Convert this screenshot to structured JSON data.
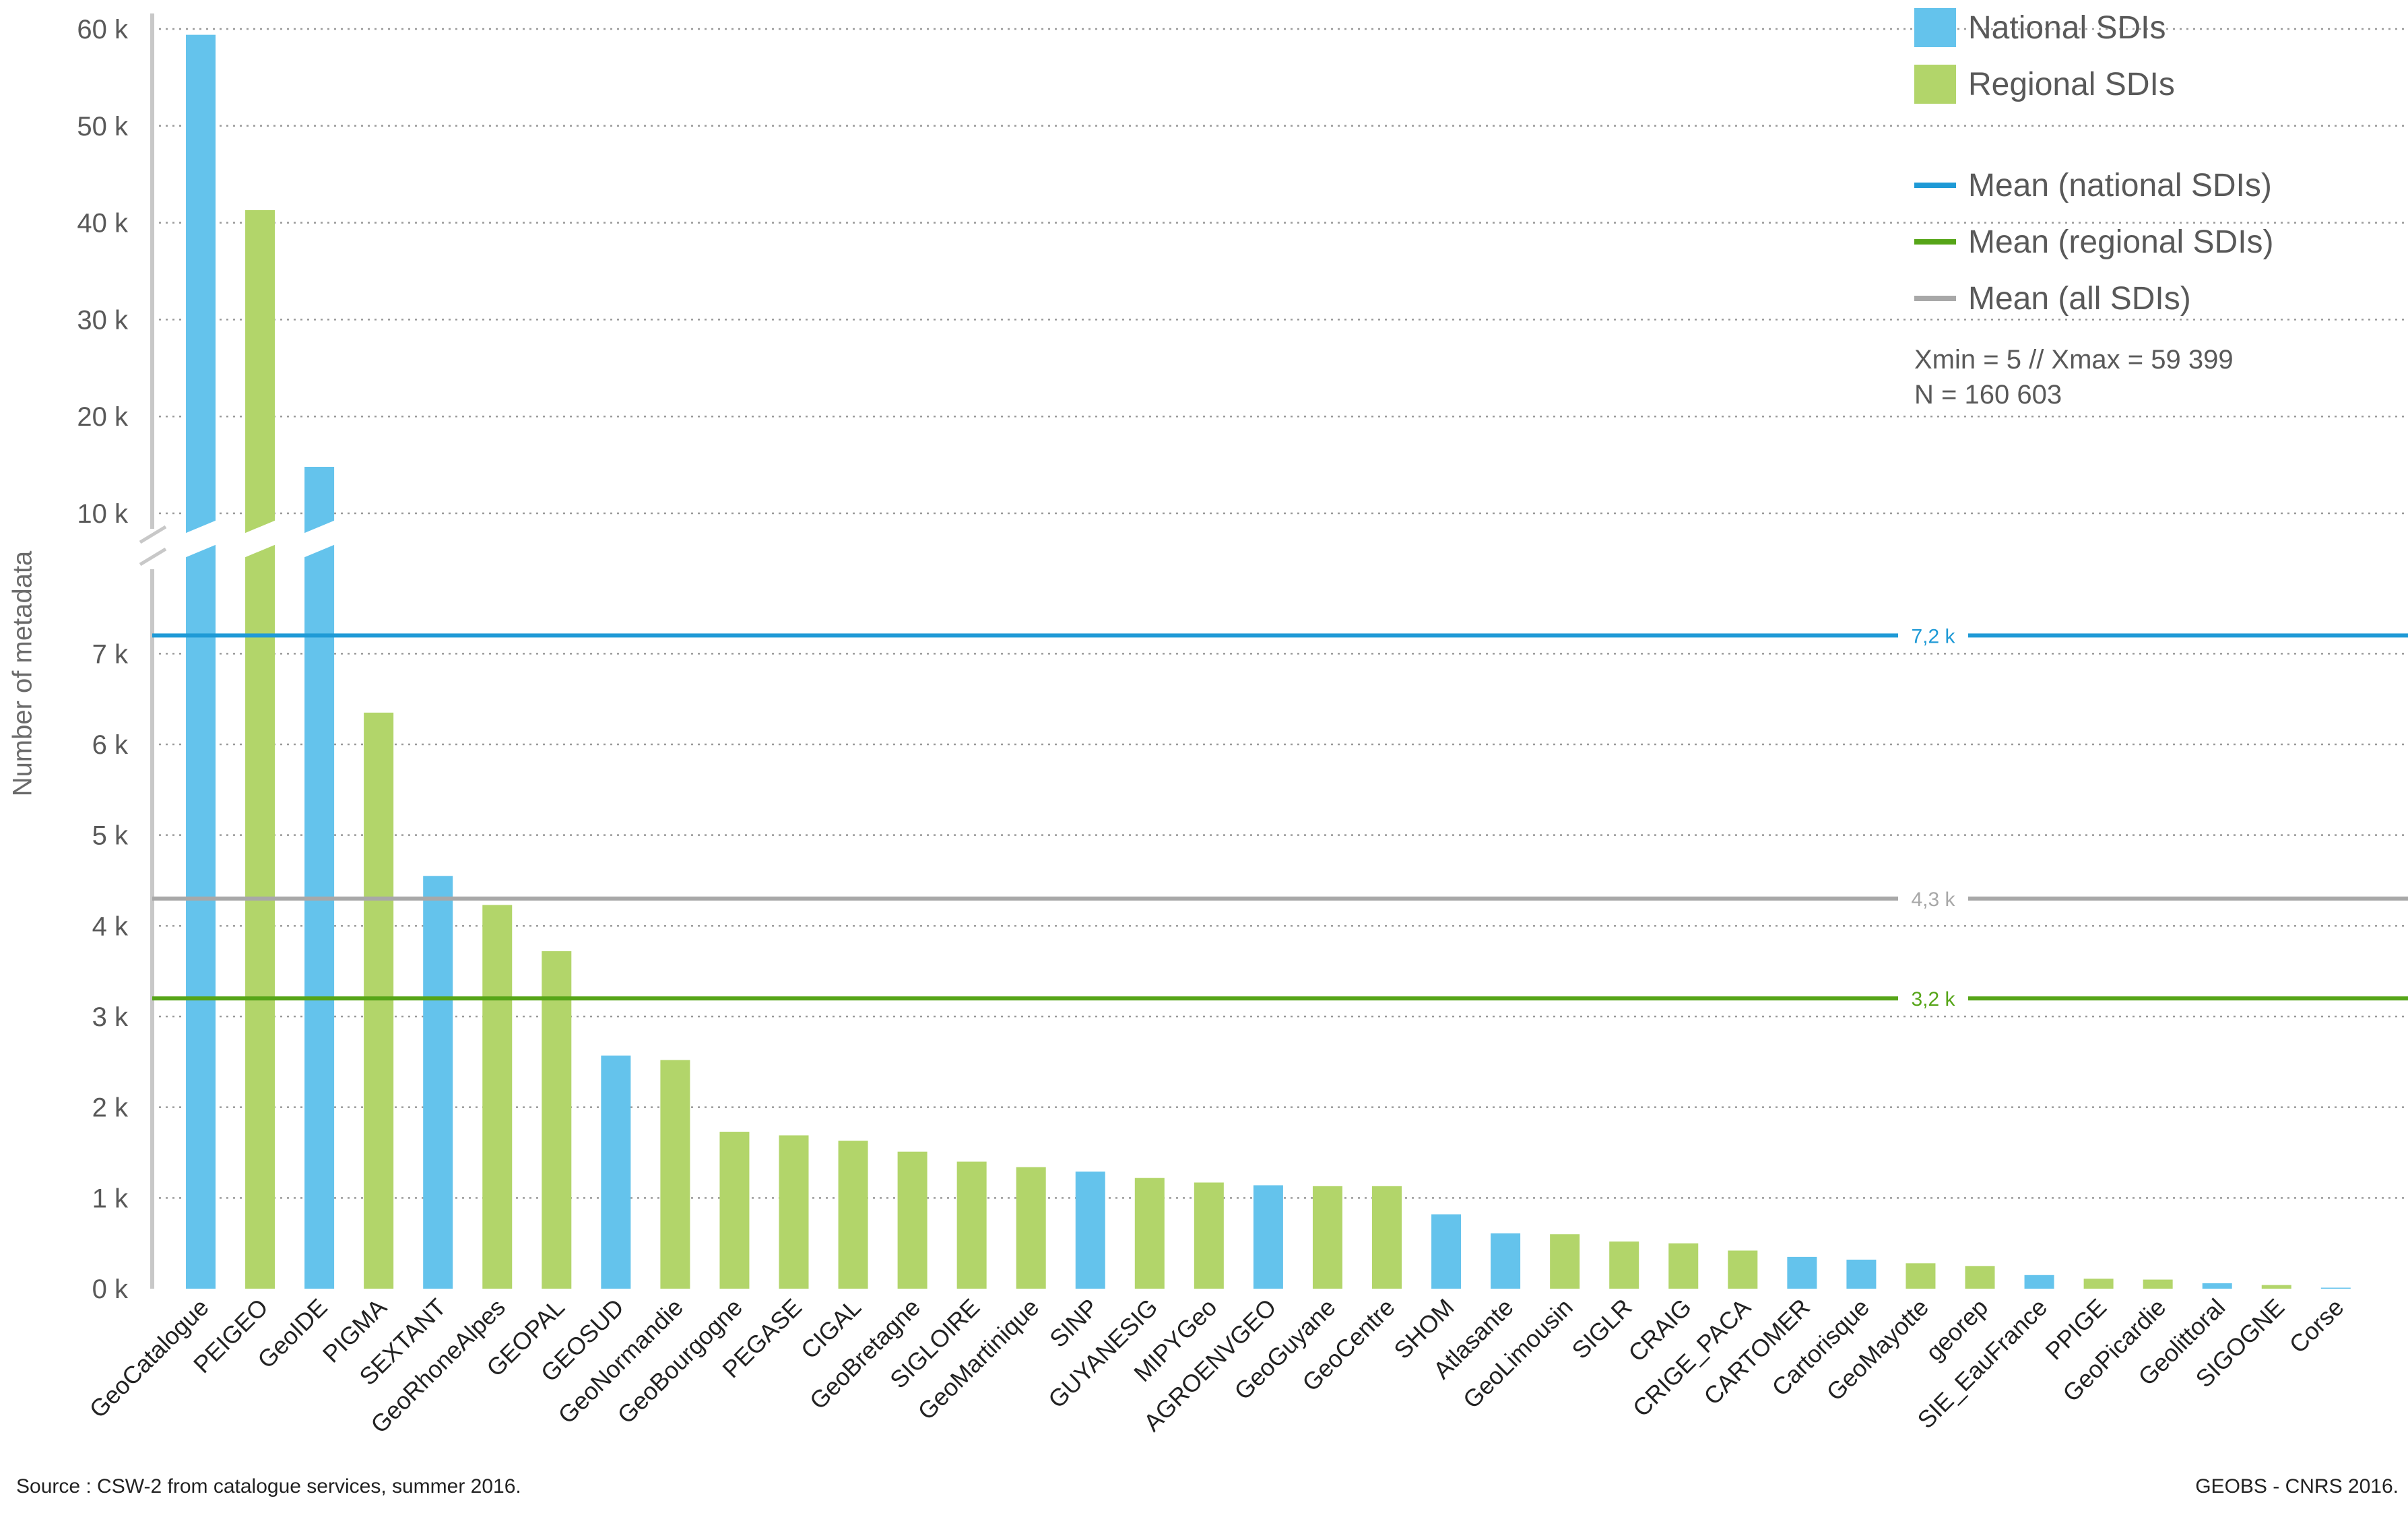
{
  "chart_data": {
    "type": "bar",
    "ylabel": "Number of metadata",
    "y_axis_break": {
      "below_max": 7500,
      "above_min": 7500
    },
    "y_ticks_lower": [
      "0 k",
      "1 k",
      "2 k",
      "3 k",
      "4 k",
      "5 k",
      "6 k",
      "7 k"
    ],
    "y_ticks_upper": [
      "10 k",
      "20 k",
      "30 k",
      "40 k",
      "50 k",
      "60 k"
    ],
    "categories": [
      "GeoCatalogue",
      "PEIGEO",
      "GeoIDE",
      "PIGMA",
      "SEXTANT",
      "GeoRhoneAlpes",
      "GEOPAL",
      "GEOSUD",
      "GeoNormandie",
      "GeoBourgogne",
      "PEGASE",
      "CIGAL",
      "GeoBretagne",
      "SIGLOIRE",
      "GeoMartinique",
      "SINP",
      "GUYANESIG",
      "MIPYGeo",
      "AGROENVGEO",
      "GeoGuyane",
      "GeoCentre",
      "SHOM",
      "Atlasante",
      "GeoLimousin",
      "SIGLR",
      "CRAIG",
      "CRIGE_PACA",
      "CARTOMER",
      "Cartorisque",
      "GeoMayotte",
      "georep",
      "SIE_EauFrance",
      "PPIGE",
      "GeoPicardie",
      "Geolittoral",
      "SIGOGNE",
      "Corse"
    ],
    "values": [
      59399,
      41300,
      14800,
      6350,
      4550,
      4230,
      3720,
      2570,
      2520,
      1730,
      1690,
      1630,
      1510,
      1400,
      1340,
      1290,
      1220,
      1170,
      1140,
      1130,
      1130,
      820,
      610,
      600,
      520,
      500,
      420,
      350,
      320,
      280,
      250,
      150,
      110,
      100,
      60,
      40,
      5
    ],
    "groups": [
      "national",
      "regional",
      "national",
      "regional",
      "national",
      "regional",
      "regional",
      "national",
      "regional",
      "regional",
      "regional",
      "regional",
      "regional",
      "regional",
      "regional",
      "national",
      "regional",
      "regional",
      "national",
      "regional",
      "regional",
      "national",
      "national",
      "regional",
      "regional",
      "regional",
      "regional",
      "national",
      "national",
      "regional",
      "regional",
      "national",
      "regional",
      "regional",
      "national",
      "regional",
      "national"
    ],
    "colors": {
      "national": "#64c3ec",
      "regional": "#b2d56a"
    },
    "mean_lines": [
      {
        "name": "Mean (national SDIs)",
        "value": 7200,
        "label": "7,2 k",
        "color": "#1f9ad6"
      },
      {
        "name": "Mean (regional SDIs)",
        "value": 3200,
        "label": "3,2 k",
        "color": "#56a518"
      },
      {
        "name": "Mean (all SDIs)",
        "value": 4300,
        "label": "4,3 k",
        "color": "#a8a8a8"
      }
    ],
    "legend_placement": "top-right",
    "grid": true
  },
  "legend": {
    "national_label": "National SDIs",
    "regional_label": "Regional SDIs",
    "mean_national_label": "Mean (national SDIs)",
    "mean_regional_label": "Mean (regional SDIs)",
    "mean_all_label": "Mean (all SDIs)",
    "national_color": "#64c3ec",
    "regional_color": "#b2d56a",
    "mean_national_color": "#1f9ad6",
    "mean_regional_color": "#56a518",
    "mean_all_color": "#a8a8a8"
  },
  "stats": {
    "range": "Xmin = 5 // Xmax = 59 399",
    "n": "N = 160 603"
  },
  "footer": {
    "source": "Source : CSW-2 from catalogue services, summer 2016.",
    "credit": "GEOBS - CNRS 2016."
  }
}
